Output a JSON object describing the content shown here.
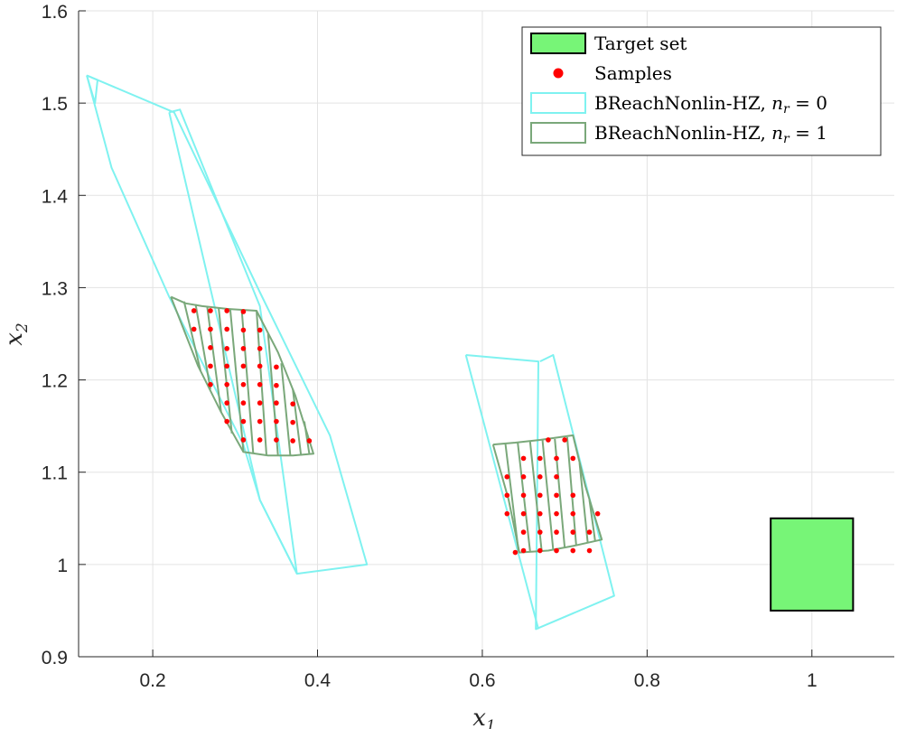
{
  "chart_data": {
    "type": "scatter",
    "xlabel": "x",
    "xlabel_sub": "1",
    "ylabel": "x",
    "ylabel_sub": "2",
    "xlim": [
      0.11,
      1.1
    ],
    "ylim": [
      0.9,
      1.6
    ],
    "xticks": [
      "0.2",
      "0.4",
      "0.6",
      "0.8",
      "1"
    ],
    "yticks": [
      "0.9",
      "1",
      "1.1",
      "1.2",
      "1.3",
      "1.4",
      "1.5",
      "1.6"
    ],
    "grid": true,
    "legend_position": "top-right",
    "legend": [
      {
        "label": "Target set",
        "kind": "box",
        "color": "#77f577"
      },
      {
        "label": "Samples",
        "kind": "dot",
        "color": "#ff0000"
      },
      {
        "label": "BReachNonlin-HZ, ",
        "math": "n_r = 0",
        "kind": "line",
        "color": "#7ff2f0"
      },
      {
        "label": "BReachNonlin-HZ, ",
        "math": "n_r = 1",
        "kind": "line",
        "color": "#7aa87a"
      }
    ],
    "target_set": {
      "x": [
        0.95,
        1.05
      ],
      "y": [
        0.95,
        1.05
      ],
      "fill": "#77f577"
    },
    "series": [
      {
        "name": "Target set",
        "kind": "box",
        "x": [
          0.95,
          1.05
        ],
        "y": [
          0.95,
          1.05
        ]
      },
      {
        "name": "Samples",
        "kind": "points",
        "color": "#ff0000",
        "points": [
          [
            0.25,
            1.275
          ],
          [
            0.27,
            1.275
          ],
          [
            0.29,
            1.275
          ],
          [
            0.31,
            1.274
          ],
          [
            0.25,
            1.255
          ],
          [
            0.27,
            1.255
          ],
          [
            0.29,
            1.255
          ],
          [
            0.31,
            1.254
          ],
          [
            0.33,
            1.254
          ],
          [
            0.27,
            1.235
          ],
          [
            0.29,
            1.234
          ],
          [
            0.31,
            1.234
          ],
          [
            0.33,
            1.234
          ],
          [
            0.27,
            1.215
          ],
          [
            0.29,
            1.215
          ],
          [
            0.31,
            1.215
          ],
          [
            0.33,
            1.215
          ],
          [
            0.35,
            1.214
          ],
          [
            0.27,
            1.195
          ],
          [
            0.29,
            1.195
          ],
          [
            0.31,
            1.195
          ],
          [
            0.33,
            1.195
          ],
          [
            0.35,
            1.194
          ],
          [
            0.29,
            1.175
          ],
          [
            0.31,
            1.175
          ],
          [
            0.33,
            1.175
          ],
          [
            0.35,
            1.175
          ],
          [
            0.37,
            1.174
          ],
          [
            0.29,
            1.155
          ],
          [
            0.31,
            1.155
          ],
          [
            0.33,
            1.155
          ],
          [
            0.35,
            1.155
          ],
          [
            0.37,
            1.154
          ],
          [
            0.31,
            1.135
          ],
          [
            0.33,
            1.135
          ],
          [
            0.35,
            1.135
          ],
          [
            0.37,
            1.134
          ],
          [
            0.39,
            1.134
          ],
          [
            0.65,
            1.115
          ],
          [
            0.67,
            1.115
          ],
          [
            0.69,
            1.115
          ],
          [
            0.71,
            1.115
          ],
          [
            0.63,
            1.095
          ],
          [
            0.65,
            1.095
          ],
          [
            0.67,
            1.095
          ],
          [
            0.69,
            1.095
          ],
          [
            0.63,
            1.075
          ],
          [
            0.65,
            1.075
          ],
          [
            0.67,
            1.075
          ],
          [
            0.69,
            1.075
          ],
          [
            0.71,
            1.075
          ],
          [
            0.63,
            1.055
          ],
          [
            0.65,
            1.055
          ],
          [
            0.67,
            1.055
          ],
          [
            0.69,
            1.055
          ],
          [
            0.71,
            1.055
          ],
          [
            0.65,
            1.035
          ],
          [
            0.67,
            1.035
          ],
          [
            0.69,
            1.035
          ],
          [
            0.71,
            1.035
          ],
          [
            0.73,
            1.035
          ],
          [
            0.65,
            1.015
          ],
          [
            0.67,
            1.015
          ],
          [
            0.69,
            1.015
          ],
          [
            0.71,
            1.015
          ],
          [
            0.73,
            1.015
          ],
          [
            0.68,
            1.135
          ],
          [
            0.7,
            1.135
          ],
          [
            0.64,
            1.013
          ],
          [
            0.74,
            1.055
          ]
        ]
      },
      {
        "name": "BReachNonlin-HZ, n_r = 0",
        "kind": "polygons",
        "color": "#7ff2f0",
        "polygons": [
          [
            [
              0.12,
              1.53
            ],
            [
              0.15,
              1.43
            ],
            [
              0.22,
              1.29
            ],
            [
              0.31,
              1.13
            ],
            [
              0.33,
              1.07
            ],
            [
              0.375,
              0.99
            ],
            [
              0.46,
              1.0
            ],
            [
              0.415,
              1.14
            ],
            [
              0.33,
              1.295
            ],
            [
              0.226,
              1.49
            ],
            [
              0.12,
              1.53
            ]
          ],
          [
            [
              0.12,
              1.53
            ],
            [
              0.133,
              1.525
            ],
            [
              0.13,
              1.5
            ],
            [
              0.12,
              1.53
            ]
          ],
          [
            [
              0.22,
              1.49
            ],
            [
              0.233,
              1.493
            ],
            [
              0.33,
              1.28
            ],
            [
              0.375,
              0.99
            ],
            [
              0.33,
              1.07
            ],
            [
              0.22,
              1.49
            ]
          ],
          [
            [
              0.58,
              1.227
            ],
            [
              0.668,
              1.22
            ],
            [
              0.665,
              0.93
            ],
            [
              0.76,
              0.966
            ],
            [
              0.686,
              1.227
            ],
            [
              0.67,
              1.22
            ]
          ],
          [
            [
              0.58,
              1.227
            ],
            [
              0.668,
              0.93
            ]
          ]
        ]
      },
      {
        "name": "BReachNonlin-HZ, n_r = 1",
        "kind": "polygons",
        "color": "#7aa87a",
        "polygons": [
          [
            [
              0.222,
              1.29
            ],
            [
              0.24,
              1.283
            ],
            [
              0.26,
              1.28
            ],
            [
              0.29,
              1.277
            ],
            [
              0.326,
              1.275
            ],
            [
              0.352,
              1.23
            ],
            [
              0.373,
              1.183
            ],
            [
              0.395,
              1.12
            ],
            [
              0.37,
              1.118
            ],
            [
              0.34,
              1.118
            ],
            [
              0.31,
              1.122
            ],
            [
              0.283,
              1.165
            ],
            [
              0.255,
              1.215
            ],
            [
              0.222,
              1.29
            ]
          ],
          [
            [
              0.613,
              1.13
            ],
            [
              0.64,
              1.132
            ],
            [
              0.67,
              1.135
            ],
            [
              0.71,
              1.14
            ],
            [
              0.725,
              1.085
            ],
            [
              0.745,
              1.027
            ],
            [
              0.71,
              1.02
            ],
            [
              0.68,
              1.015
            ],
            [
              0.645,
              1.013
            ],
            [
              0.632,
              1.07
            ],
            [
              0.613,
              1.13
            ]
          ]
        ],
        "hatch": [
          [
            [
              0.238,
              1.285
            ],
            [
              0.258,
              1.21
            ]
          ],
          [
            [
              0.252,
              1.282
            ],
            [
              0.27,
              1.19
            ]
          ],
          [
            [
              0.266,
              1.28
            ],
            [
              0.283,
              1.165
            ]
          ],
          [
            [
              0.28,
              1.278
            ],
            [
              0.296,
              1.142
            ]
          ],
          [
            [
              0.294,
              1.277
            ],
            [
              0.31,
              1.123
            ]
          ],
          [
            [
              0.308,
              1.276
            ],
            [
              0.322,
              1.12
            ]
          ],
          [
            [
              0.326,
              1.275
            ],
            [
              0.338,
              1.119
            ]
          ],
          [
            [
              0.34,
              1.25
            ],
            [
              0.352,
              1.118
            ]
          ],
          [
            [
              0.356,
              1.218
            ],
            [
              0.367,
              1.118
            ]
          ],
          [
            [
              0.37,
              1.19
            ],
            [
              0.38,
              1.118
            ]
          ],
          [
            [
              0.384,
              1.155
            ],
            [
              0.39,
              1.12
            ]
          ],
          [
            [
              0.628,
              1.131
            ],
            [
              0.644,
              1.014
            ]
          ],
          [
            [
              0.643,
              1.132
            ],
            [
              0.658,
              1.014
            ]
          ],
          [
            [
              0.658,
              1.133
            ],
            [
              0.672,
              1.015
            ]
          ],
          [
            [
              0.673,
              1.135
            ],
            [
              0.686,
              1.016
            ]
          ],
          [
            [
              0.688,
              1.136
            ],
            [
              0.7,
              1.018
            ]
          ],
          [
            [
              0.703,
              1.138
            ],
            [
              0.714,
              1.02
            ]
          ],
          [
            [
              0.718,
              1.11
            ],
            [
              0.728,
              1.023
            ]
          ],
          [
            [
              0.73,
              1.07
            ],
            [
              0.737,
              1.025
            ]
          ]
        ]
      }
    ]
  }
}
